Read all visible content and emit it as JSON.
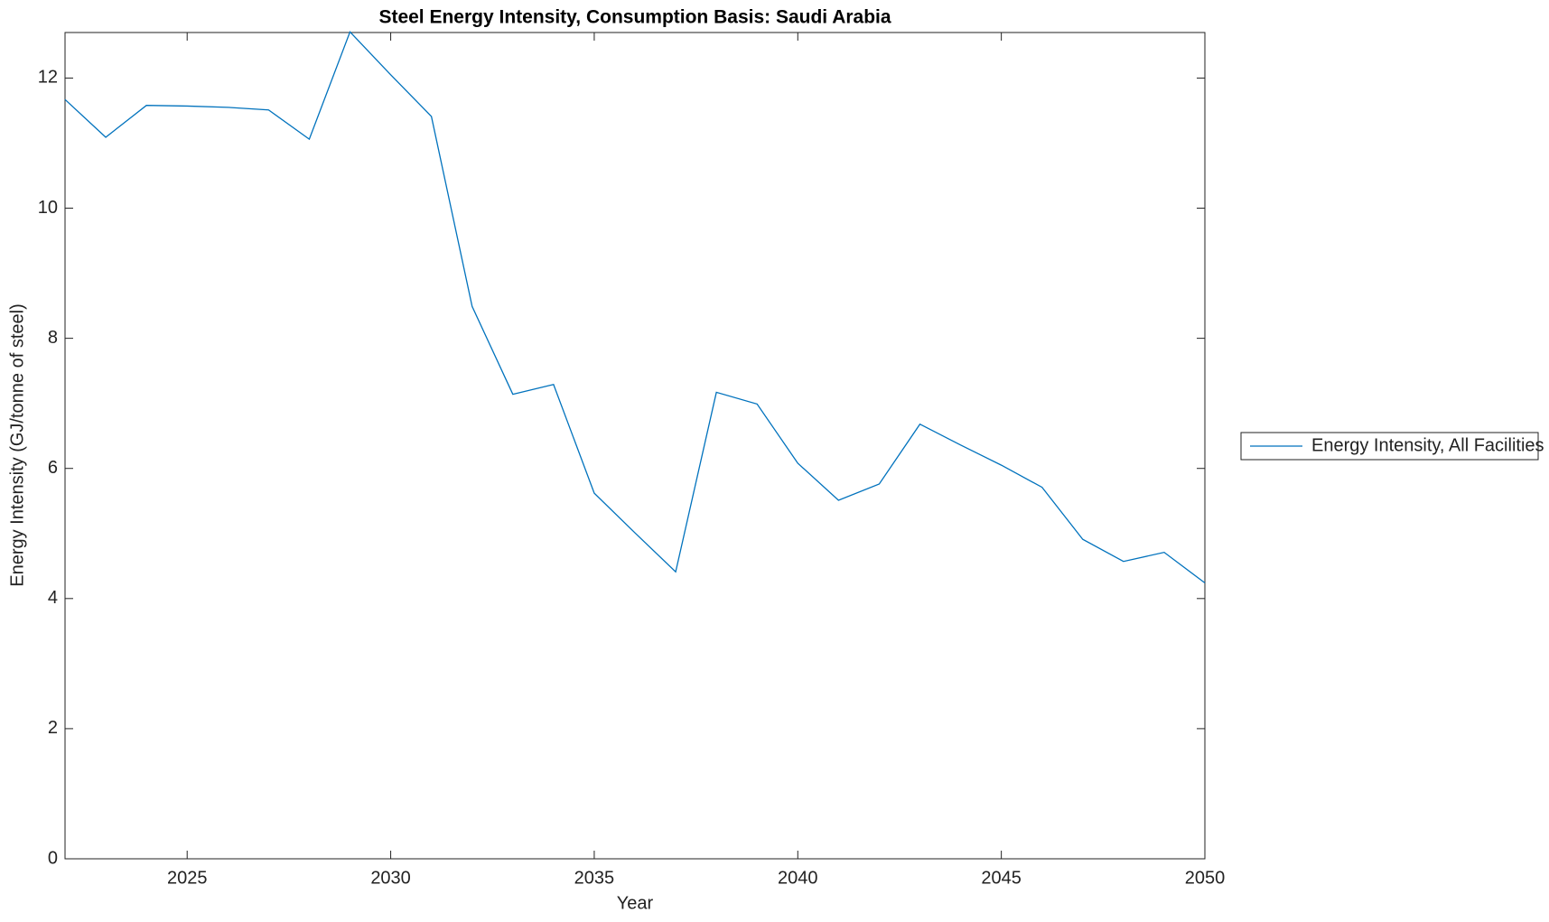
{
  "chart_data": {
    "type": "line",
    "title": "Steel Energy Intensity, Consumption Basis: Saudi Arabia",
    "x_label": "Year",
    "y_label": "Energy Intensity (GJ/tonne of steel)",
    "x": [
      2022,
      2023,
      2024,
      2025,
      2026,
      2027,
      2028,
      2029,
      2030,
      2031,
      2032,
      2033,
      2034,
      2035,
      2036,
      2037,
      2038,
      2039,
      2040,
      2041,
      2042,
      2043,
      2044,
      2045,
      2046,
      2047,
      2048,
      2049,
      2050
    ],
    "series": [
      {
        "name": "Energy Intensity, All Facilities",
        "color": "#0072bd",
        "values": [
          11.67,
          11.09,
          11.58,
          11.57,
          11.55,
          11.51,
          11.06,
          12.71,
          12.05,
          11.41,
          8.49,
          7.14,
          7.29,
          5.62,
          5.01,
          4.41,
          7.17,
          6.99,
          6.08,
          5.51,
          5.76,
          6.68,
          6.36,
          6.05,
          5.71,
          4.91,
          4.57,
          4.71,
          4.24
        ]
      }
    ],
    "xlim": [
      2022,
      2050
    ],
    "xticks": [
      2025,
      2030,
      2035,
      2040,
      2045,
      2050
    ],
    "ylim": [
      0,
      12.7
    ],
    "yticks": [
      0,
      2,
      4,
      6,
      8,
      10,
      12
    ],
    "grid": false,
    "legend_position": "outside-right"
  }
}
